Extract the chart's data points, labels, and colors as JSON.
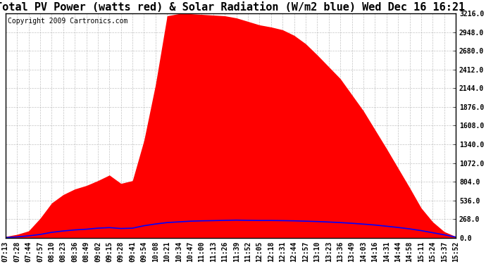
{
  "title": "Total PV Power (watts red) & Solar Radiation (W/m2 blue) Wed Dec 16 16:21",
  "copyright": "Copyright 2009 Cartronics.com",
  "y_max": 3216.0,
  "y_min": 0.0,
  "y_ticks": [
    0.0,
    268.0,
    536.0,
    804.0,
    1072.0,
    1340.0,
    1608.0,
    1876.0,
    2144.0,
    2412.0,
    2680.0,
    2948.0,
    3216.0
  ],
  "x_labels": [
    "07:13",
    "07:28",
    "07:44",
    "07:57",
    "08:10",
    "08:23",
    "08:36",
    "08:49",
    "09:02",
    "09:15",
    "09:28",
    "09:41",
    "09:54",
    "10:08",
    "10:21",
    "10:34",
    "10:47",
    "11:00",
    "11:13",
    "11:26",
    "11:39",
    "11:52",
    "12:05",
    "12:18",
    "12:31",
    "12:44",
    "12:57",
    "13:10",
    "13:23",
    "13:36",
    "13:49",
    "14:03",
    "14:16",
    "14:31",
    "14:44",
    "14:58",
    "15:11",
    "15:24",
    "15:37",
    "15:52"
  ],
  "pv_power": [
    20,
    50,
    100,
    280,
    500,
    620,
    700,
    750,
    820,
    900,
    780,
    820,
    1400,
    2200,
    3180,
    3210,
    3210,
    3200,
    3190,
    3180,
    3150,
    3100,
    3050,
    3020,
    2980,
    2900,
    2780,
    2620,
    2450,
    2280,
    2050,
    1820,
    1550,
    1280,
    1000,
    720,
    430,
    230,
    90,
    20
  ],
  "solar_radiation": [
    5,
    15,
    30,
    50,
    80,
    100,
    115,
    125,
    140,
    148,
    135,
    140,
    175,
    200,
    220,
    230,
    240,
    245,
    248,
    252,
    255,
    252,
    250,
    250,
    248,
    245,
    240,
    235,
    228,
    220,
    210,
    198,
    185,
    168,
    150,
    130,
    105,
    75,
    45,
    12
  ],
  "red_color": "#FF0000",
  "blue_color": "#0000FF",
  "bg_color": "#FFFFFF",
  "plot_bg_color": "#FFFFFF",
  "grid_color": "#AAAAAA",
  "title_fontsize": 11,
  "tick_fontsize": 7,
  "copyright_fontsize": 7
}
